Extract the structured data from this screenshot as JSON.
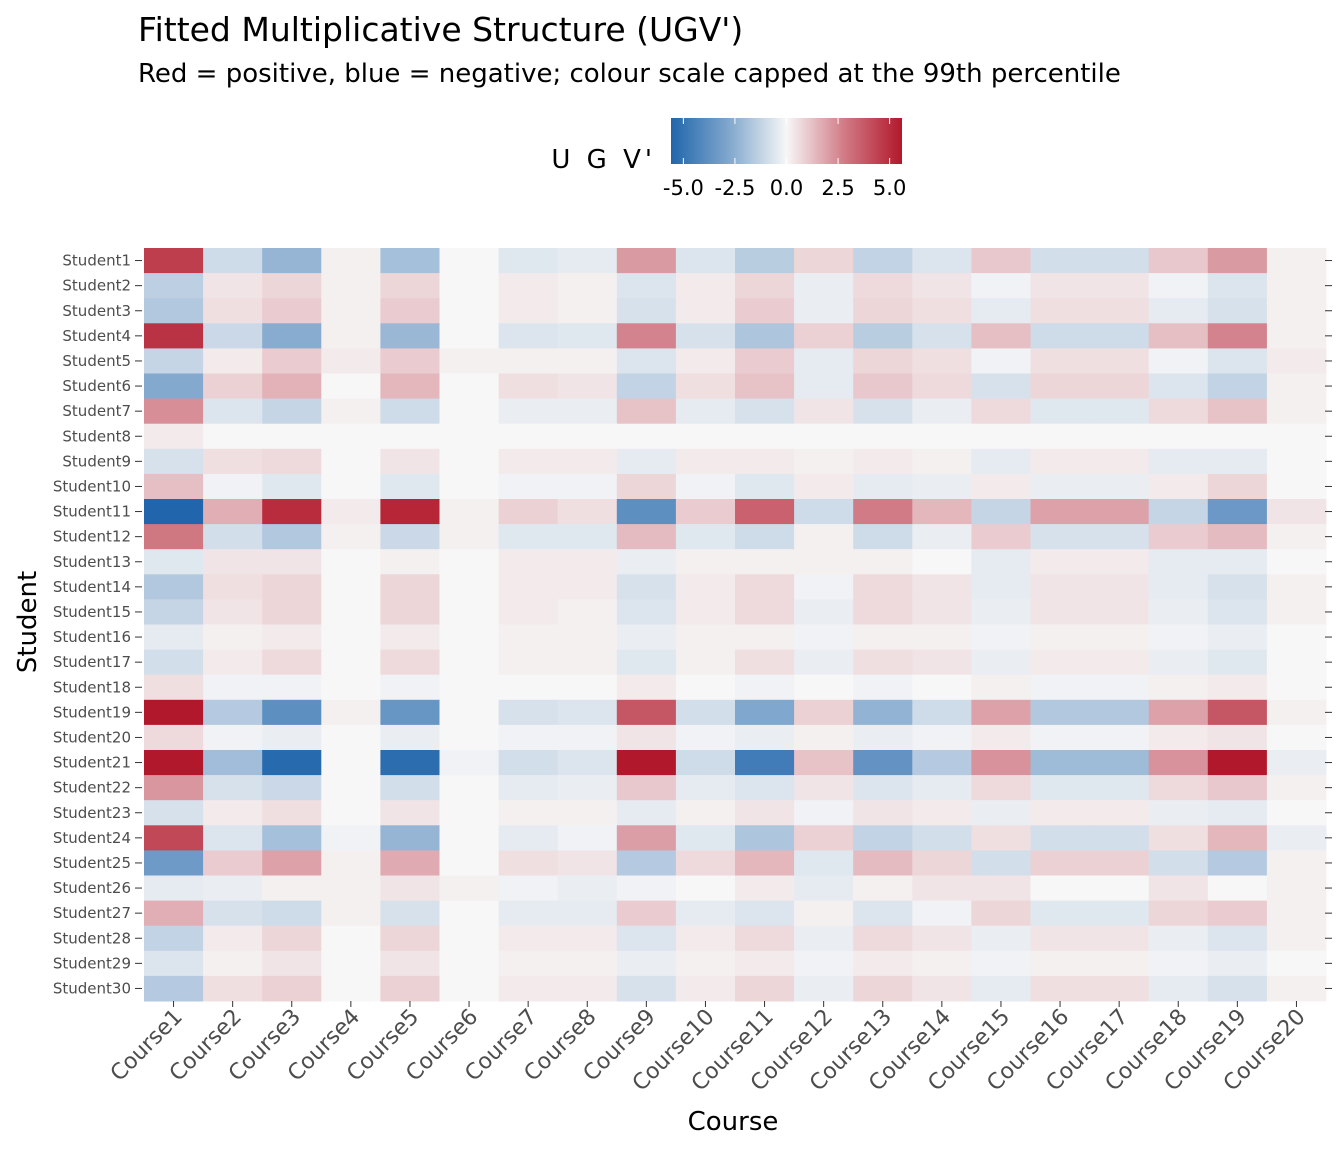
{
  "chart_data": {
    "type": "heatmap",
    "title": "Fitted Multiplicative Structure (UGV')",
    "subtitle": "Red = positive, blue = negative; colour scale capped at the 99th percentile",
    "xlabel": "Course",
    "ylabel": "Student",
    "legend": {
      "title": "U G V'",
      "placement": "top",
      "ticks": [
        -5.0,
        -2.5,
        0.0,
        2.5,
        5.0
      ],
      "tick_labels": [
        "-5.0",
        "-2.5",
        "0.0",
        "2.5",
        "5.0"
      ],
      "limits": [
        -5.6,
        5.6
      ],
      "low_color": "#2166ac",
      "mid_color": "#f7f7f7",
      "high_color": "#b2182b"
    },
    "grid": false,
    "x_categories": [
      "Course1",
      "Course2",
      "Course3",
      "Course4",
      "Course5",
      "Course6",
      "Course7",
      "Course8",
      "Course9",
      "Course10",
      "Course11",
      "Course12",
      "Course13",
      "Course14",
      "Course15",
      "Course16",
      "Course17",
      "Course18",
      "Course19",
      "Course20"
    ],
    "y_categories": [
      "Student1",
      "Student2",
      "Student3",
      "Student4",
      "Student5",
      "Student6",
      "Student7",
      "Student8",
      "Student9",
      "Student10",
      "Student11",
      "Student12",
      "Student13",
      "Student14",
      "Student15",
      "Student16",
      "Student17",
      "Student18",
      "Student19",
      "Student20",
      "Student21",
      "Student22",
      "Student23",
      "Student24",
      "Student25",
      "Student26",
      "Student27",
      "Student28",
      "Student29",
      "Student30"
    ],
    "values": [
      [
        4.5,
        -0.8,
        -2.2,
        0.1,
        -1.8,
        0.0,
        -0.4,
        -0.3,
        2.0,
        -0.5,
        -1.3,
        0.6,
        -1.1,
        -0.5,
        0.9,
        -0.7,
        -0.7,
        0.9,
        2.0,
        0.1
      ],
      [
        -1.2,
        0.3,
        0.6,
        0.1,
        0.6,
        0.0,
        0.2,
        0.1,
        -0.5,
        0.2,
        0.6,
        -0.2,
        0.5,
        0.3,
        -0.1,
        0.3,
        0.3,
        -0.1,
        -0.5,
        0.1
      ],
      [
        -1.5,
        0.4,
        0.8,
        0.1,
        0.8,
        0.0,
        0.2,
        0.1,
        -0.6,
        0.2,
        0.8,
        -0.2,
        0.6,
        0.4,
        -0.3,
        0.4,
        0.4,
        -0.3,
        -0.6,
        0.1
      ],
      [
        4.8,
        -0.9,
        -2.6,
        0.1,
        -2.1,
        0.0,
        -0.5,
        -0.4,
        2.6,
        -0.6,
        -1.6,
        0.7,
        -1.3,
        -0.6,
        1.1,
        -0.8,
        -0.8,
        1.1,
        2.6,
        0.1
      ],
      [
        -1.0,
        0.2,
        0.8,
        0.2,
        0.8,
        0.1,
        0.1,
        0.1,
        -0.5,
        0.2,
        0.8,
        -0.3,
        0.6,
        0.4,
        -0.1,
        0.4,
        0.4,
        -0.1,
        -0.5,
        0.2
      ],
      [
        -2.7,
        0.7,
        1.4,
        0.0,
        1.3,
        0.0,
        0.4,
        0.3,
        -1.1,
        0.4,
        1.0,
        -0.3,
        0.9,
        0.5,
        -0.6,
        0.6,
        0.6,
        -0.5,
        -1.1,
        0.1
      ],
      [
        2.3,
        -0.5,
        -1.0,
        0.1,
        -0.8,
        0.0,
        -0.2,
        -0.2,
        1.0,
        -0.3,
        -0.6,
        0.3,
        -0.6,
        -0.2,
        0.5,
        -0.4,
        -0.4,
        0.5,
        1.0,
        0.1
      ],
      [
        0.2,
        0.0,
        0.0,
        0.0,
        0.0,
        0.0,
        0.0,
        0.0,
        0.0,
        0.0,
        0.0,
        0.0,
        0.0,
        0.0,
        0.0,
        0.0,
        0.0,
        0.0,
        0.0,
        0.0
      ],
      [
        -0.6,
        0.4,
        0.5,
        0.0,
        0.3,
        0.0,
        0.2,
        0.2,
        -0.3,
        0.2,
        0.2,
        0.1,
        0.2,
        0.1,
        -0.3,
        0.2,
        0.2,
        -0.3,
        -0.3,
        0.0
      ],
      [
        1.1,
        -0.1,
        -0.4,
        0.0,
        -0.4,
        0.0,
        -0.1,
        -0.1,
        0.6,
        -0.1,
        -0.4,
        0.2,
        -0.3,
        -0.2,
        0.2,
        -0.2,
        -0.2,
        0.2,
        0.6,
        0.0
      ],
      [
        -5.6,
        1.5,
        5.0,
        0.2,
        5.2,
        0.1,
        0.7,
        0.4,
        -3.8,
        0.8,
        3.5,
        -0.8,
        2.8,
        1.3,
        -1.0,
        1.8,
        1.8,
        -1.0,
        -3.4,
        0.3
      ],
      [
        2.9,
        -0.7,
        -1.5,
        0.1,
        -0.9,
        0.1,
        -0.4,
        -0.4,
        1.2,
        -0.4,
        -0.8,
        0.1,
        -0.8,
        -0.2,
        0.8,
        -0.6,
        -0.6,
        0.8,
        1.2,
        0.1
      ],
      [
        -0.4,
        0.3,
        0.3,
        0.0,
        0.1,
        0.0,
        0.2,
        0.2,
        -0.2,
        0.1,
        0.1,
        0.1,
        0.1,
        0.0,
        -0.3,
        0.2,
        0.2,
        -0.3,
        -0.3,
        0.0
      ],
      [
        -1.5,
        0.4,
        0.6,
        0.0,
        0.6,
        0.0,
        0.2,
        0.2,
        -0.6,
        0.2,
        0.5,
        -0.1,
        0.5,
        0.3,
        -0.3,
        0.3,
        0.3,
        -0.3,
        -0.6,
        0.1
      ],
      [
        -1.0,
        0.3,
        0.6,
        0.0,
        0.6,
        0.0,
        0.2,
        0.1,
        -0.5,
        0.2,
        0.5,
        -0.2,
        0.5,
        0.3,
        -0.2,
        0.3,
        0.3,
        -0.2,
        -0.5,
        0.1
      ],
      [
        -0.3,
        0.1,
        0.2,
        0.0,
        0.2,
        0.0,
        0.1,
        0.1,
        -0.2,
        0.1,
        0.1,
        -0.1,
        0.1,
        0.1,
        -0.1,
        0.1,
        0.1,
        -0.1,
        -0.2,
        0.0
      ],
      [
        -0.7,
        0.2,
        0.5,
        0.0,
        0.5,
        0.0,
        0.1,
        0.1,
        -0.4,
        0.1,
        0.4,
        -0.2,
        0.4,
        0.3,
        -0.2,
        0.2,
        0.2,
        -0.2,
        -0.4,
        0.0
      ],
      [
        0.4,
        -0.1,
        -0.1,
        0.0,
        -0.1,
        0.0,
        0.0,
        0.0,
        0.2,
        0.0,
        -0.1,
        0.0,
        -0.1,
        0.0,
        0.1,
        -0.1,
        -0.1,
        0.1,
        0.2,
        0.0
      ],
      [
        5.6,
        -1.4,
        -3.8,
        0.1,
        -3.5,
        0.0,
        -0.6,
        -0.5,
        3.8,
        -0.7,
        -2.8,
        0.7,
        -2.3,
        -0.8,
        1.8,
        -1.5,
        -1.5,
        1.8,
        3.8,
        0.1
      ],
      [
        0.5,
        -0.1,
        -0.2,
        0.0,
        -0.2,
        0.0,
        -0.1,
        -0.1,
        0.3,
        -0.1,
        -0.2,
        0.1,
        -0.2,
        -0.1,
        0.2,
        -0.1,
        -0.1,
        0.2,
        0.3,
        0.0
      ],
      [
        5.8,
        -1.9,
        -5.4,
        0.0,
        -5.3,
        -0.1,
        -0.7,
        -0.5,
        5.8,
        -0.8,
        -4.6,
        1.0,
        -3.6,
        -1.4,
        2.2,
        -2.0,
        -2.0,
        2.2,
        5.8,
        -0.2
      ],
      [
        2.1,
        -0.6,
        -0.9,
        0.0,
        -0.7,
        0.0,
        -0.3,
        -0.2,
        0.9,
        -0.3,
        -0.5,
        0.3,
        -0.5,
        -0.3,
        0.5,
        -0.4,
        -0.4,
        0.5,
        0.9,
        0.1
      ],
      [
        -0.6,
        0.2,
        0.4,
        0.0,
        0.3,
        0.0,
        0.1,
        0.1,
        -0.3,
        0.1,
        0.3,
        -0.1,
        0.3,
        0.2,
        -0.2,
        0.2,
        0.2,
        -0.2,
        -0.3,
        0.0
      ],
      [
        4.2,
        -0.5,
        -1.8,
        -0.1,
        -2.2,
        0.0,
        -0.3,
        -0.1,
        1.9,
        -0.4,
        -1.6,
        0.7,
        -1.1,
        -0.7,
        0.4,
        -0.7,
        -0.7,
        0.4,
        1.3,
        -0.2
      ],
      [
        -3.3,
        0.8,
        1.8,
        0.1,
        1.6,
        0.0,
        0.4,
        0.3,
        -1.4,
        0.5,
        1.3,
        -0.4,
        1.2,
        0.6,
        -0.7,
        0.7,
        0.7,
        -0.7,
        -1.4,
        0.1
      ],
      [
        -0.3,
        -0.2,
        0.1,
        0.1,
        0.3,
        0.1,
        -0.1,
        -0.2,
        -0.1,
        0.0,
        0.2,
        -0.3,
        0.1,
        0.3,
        0.3,
        0.0,
        0.0,
        0.3,
        0.0,
        0.1
      ],
      [
        1.5,
        -0.6,
        -0.8,
        0.1,
        -0.6,
        0.0,
        -0.3,
        -0.3,
        0.8,
        -0.3,
        -0.5,
        0.1,
        -0.5,
        -0.1,
        0.6,
        -0.4,
        -0.4,
        0.6,
        0.8,
        0.1
      ],
      [
        -1.1,
        0.2,
        0.6,
        0.0,
        0.6,
        0.0,
        0.2,
        0.2,
        -0.5,
        0.2,
        0.5,
        -0.2,
        0.5,
        0.3,
        -0.2,
        0.3,
        0.3,
        -0.2,
        -0.5,
        0.1
      ],
      [
        -0.5,
        0.1,
        0.3,
        0.0,
        0.3,
        0.0,
        0.1,
        0.1,
        -0.2,
        0.1,
        0.2,
        -0.1,
        0.2,
        0.1,
        -0.1,
        0.1,
        0.1,
        -0.1,
        -0.2,
        0.0
      ],
      [
        -1.4,
        0.4,
        0.7,
        0.0,
        0.7,
        0.0,
        0.2,
        0.2,
        -0.6,
        0.2,
        0.6,
        -0.2,
        0.6,
        0.3,
        -0.3,
        0.4,
        0.4,
        -0.3,
        -0.6,
        0.1
      ]
    ]
  }
}
